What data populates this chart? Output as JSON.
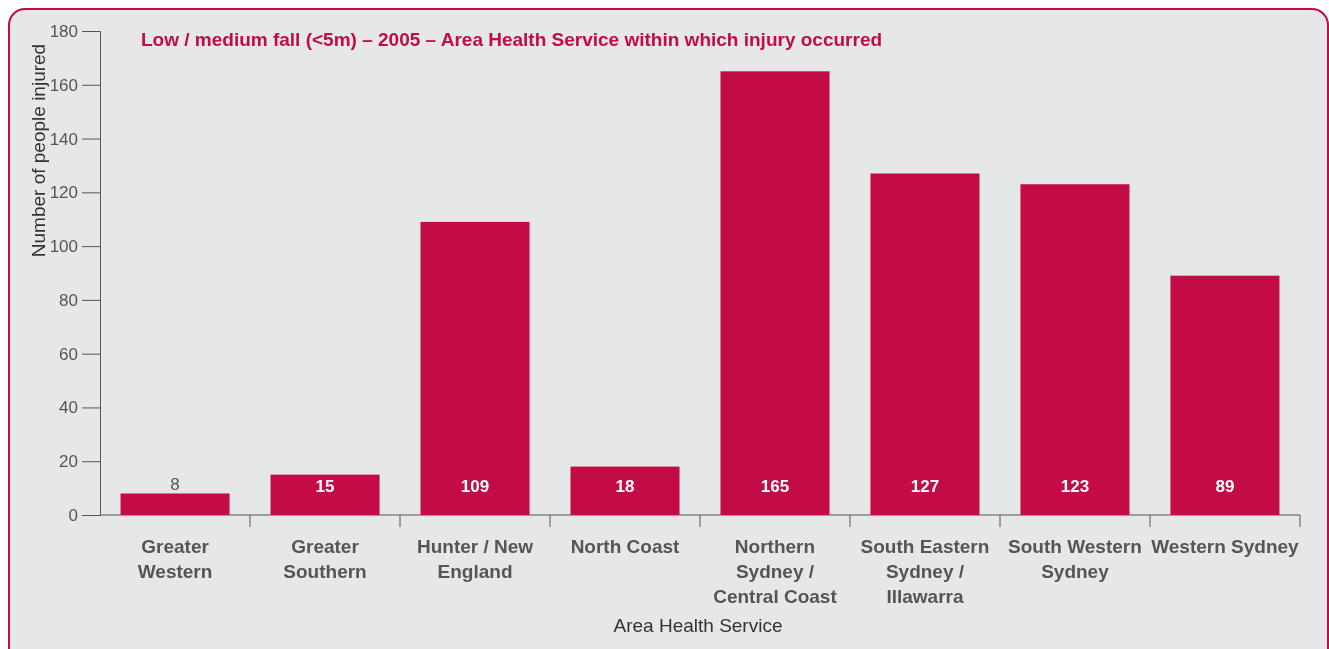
{
  "chart_data": {
    "type": "bar",
    "title": "Low / medium fall (<5m) – 2005 – Area Health Service within which injury occurred",
    "xlabel": "Area Health Service",
    "ylabel": "Number of people injured",
    "categories": [
      "Greater Western",
      "Greater Southern",
      "Hunter / New England",
      "North Coast",
      "Northern Sydney / Central Coast",
      "South Eastern Sydney / Illawarra",
      "South Western Sydney",
      "Western Sydney"
    ],
    "values": [
      8,
      15,
      109,
      18,
      165,
      127,
      123,
      89
    ],
    "color": "#c30b45",
    "ylim": [
      0,
      180
    ],
    "yticks": [
      0,
      20,
      40,
      60,
      80,
      100,
      120,
      140,
      160,
      180
    ],
    "grid": false,
    "data_labels": true
  }
}
